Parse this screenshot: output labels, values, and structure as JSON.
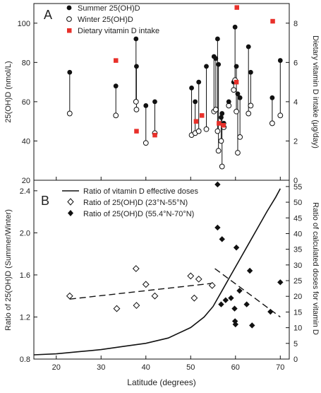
{
  "chart_data": [
    {
      "panel": "A",
      "type": "scatter",
      "ylabel": "25(OH)D (nmol/L)",
      "y2label": "Dietary vitamin D intake (μg/day)",
      "xlim": [
        15,
        72
      ],
      "ylim": [
        20,
        110
      ],
      "y2lim": [
        0,
        9
      ],
      "yticks": [
        20,
        40,
        60,
        80,
        100
      ],
      "y2ticks": [
        0,
        2,
        4,
        6,
        8
      ],
      "legend": [
        "Summer 25(OH)D",
        "Winter 25(OH)D",
        "Dietary vitamin D intake"
      ],
      "pairs": [
        {
          "lat": 23,
          "summer": 75,
          "winter": 54
        },
        {
          "lat": 33.3,
          "summer": 68,
          "winter": 53
        },
        {
          "lat": 37.8,
          "summer": 92,
          "winter": 60
        },
        {
          "lat": 37.9,
          "summer": 78,
          "winter": 56
        },
        {
          "lat": 40,
          "summer": 58,
          "winter": 39
        },
        {
          "lat": 42,
          "summer": 60,
          "winter": 44
        },
        {
          "lat": 50.2,
          "summer": 67,
          "winter": 43
        },
        {
          "lat": 51,
          "summer": 60,
          "winter": 44
        },
        {
          "lat": 51.8,
          "summer": 70,
          "winter": 45
        },
        {
          "lat": 53.5,
          "summer": 78,
          "winter": 46
        },
        {
          "lat": 55.2,
          "summer": 83,
          "winter": 55
        },
        {
          "lat": 55.6,
          "summer": 82,
          "winter": 56
        },
        {
          "lat": 56,
          "summer": 92,
          "winter": 45
        },
        {
          "lat": 56.2,
          "summer": 79,
          "winter": 35
        },
        {
          "lat": 56.8,
          "summer": 52,
          "winter": 40
        },
        {
          "lat": 57,
          "summer": 54,
          "winter": 27
        },
        {
          "lat": 57.4,
          "summer": 49,
          "winter": 47
        },
        {
          "lat": 58.5,
          "summer": 60,
          "winter": 58
        },
        {
          "lat": 59.6,
          "summer": 70,
          "winter": 66
        },
        {
          "lat": 59.9,
          "summer": 98,
          "winter": 71
        },
        {
          "lat": 60.2,
          "summer": 78,
          "winter": 55
        },
        {
          "lat": 60.5,
          "summer": 64,
          "winter": 34
        },
        {
          "lat": 61,
          "summer": 62,
          "winter": 42
        },
        {
          "lat": 62.9,
          "summer": 88,
          "winter": 54
        },
        {
          "lat": 63.4,
          "summer": 75,
          "winter": 58
        },
        {
          "lat": 68.2,
          "summer": 62,
          "winter": 49
        },
        {
          "lat": 70,
          "summer": 81,
          "winter": 53
        }
      ],
      "dietary_intake": [
        {
          "lat": 33.3,
          "value": 6.1
        },
        {
          "lat": 37.9,
          "value": 2.5
        },
        {
          "lat": 42,
          "value": 2.3
        },
        {
          "lat": 51.2,
          "value": 3.0
        },
        {
          "lat": 52.5,
          "value": 3.3
        },
        {
          "lat": 56.3,
          "value": 2.9
        },
        {
          "lat": 57.3,
          "value": 2.8
        },
        {
          "lat": 60.3,
          "value": 8.8
        },
        {
          "lat": 60.2,
          "value": 5.0
        },
        {
          "lat": 68.3,
          "value": 8.1
        }
      ]
    },
    {
      "panel": "B",
      "type": "scatter",
      "xlabel": "Latitude (degrees)",
      "ylabel": "Ratio of 25(OH)D (Summer/Winter)",
      "y2label": "Ratio of calculated doses for vitamin D",
      "xlim": [
        15,
        72
      ],
      "xticks": [
        20,
        30,
        40,
        50,
        60,
        70
      ],
      "ylim": [
        0.8,
        2.5
      ],
      "yticks": [
        0.8,
        1.2,
        1.6,
        2.0,
        2.4
      ],
      "y2lim": [
        0,
        57
      ],
      "y2ticks": [
        0,
        5,
        10,
        15,
        20,
        25,
        30,
        35,
        40,
        45,
        50,
        55
      ],
      "legend": [
        "Ratio of vitamin D effective doses",
        "Ratio of 25(OH)D (23°N-55°N)",
        "Ratio of 25(OH)D (55.4°N-70°N)"
      ],
      "low_lat_ratios": [
        {
          "lat": 23,
          "value": 1.4
        },
        {
          "lat": 33.5,
          "value": 1.28
        },
        {
          "lat": 37.8,
          "value": 1.66
        },
        {
          "lat": 37.9,
          "value": 1.31
        },
        {
          "lat": 40,
          "value": 1.51
        },
        {
          "lat": 42,
          "value": 1.4
        },
        {
          "lat": 50,
          "value": 1.59
        },
        {
          "lat": 50.8,
          "value": 1.38
        },
        {
          "lat": 51.8,
          "value": 1.56
        },
        {
          "lat": 54.8,
          "value": 1.5
        }
      ],
      "high_lat_ratios": [
        {
          "lat": 56,
          "value": 2.46
        },
        {
          "lat": 56,
          "value": 2.05
        },
        {
          "lat": 57,
          "value": 1.94
        },
        {
          "lat": 56.8,
          "value": 1.32
        },
        {
          "lat": 57.8,
          "value": 1.36
        },
        {
          "lat": 59,
          "value": 1.38
        },
        {
          "lat": 59.8,
          "value": 1.28
        },
        {
          "lat": 59.9,
          "value": 1.16
        },
        {
          "lat": 60,
          "value": 1.13
        },
        {
          "lat": 60.2,
          "value": 1.86
        },
        {
          "lat": 60.9,
          "value": 1.45
        },
        {
          "lat": 62.5,
          "value": 1.32
        },
        {
          "lat": 63.2,
          "value": 1.64
        },
        {
          "lat": 63.7,
          "value": 1.12
        },
        {
          "lat": 67.8,
          "value": 1.25
        },
        {
          "lat": 70,
          "value": 1.53
        }
      ],
      "fit_low": {
        "lat": [
          23,
          54.8
        ],
        "value": [
          1.37,
          1.52
        ]
      },
      "fit_high": {
        "lat": [
          55.4,
          70
        ],
        "value": [
          1.66,
          1.2
        ]
      },
      "effective_dose_curve": [
        {
          "lat": 15,
          "value": 0.84
        },
        {
          "lat": 20,
          "value": 0.85
        },
        {
          "lat": 25,
          "value": 0.87
        },
        {
          "lat": 30,
          "value": 0.89
        },
        {
          "lat": 35,
          "value": 0.92
        },
        {
          "lat": 40,
          "value": 0.95
        },
        {
          "lat": 45,
          "value": 1.0
        },
        {
          "lat": 50,
          "value": 1.1
        },
        {
          "lat": 53,
          "value": 1.2
        },
        {
          "lat": 55,
          "value": 1.3
        },
        {
          "lat": 57,
          "value": 1.45
        },
        {
          "lat": 59,
          "value": 1.6
        },
        {
          "lat": 61,
          "value": 1.75
        },
        {
          "lat": 63,
          "value": 1.9
        },
        {
          "lat": 65,
          "value": 2.05
        },
        {
          "lat": 67,
          "value": 2.2
        },
        {
          "lat": 69,
          "value": 2.34
        },
        {
          "lat": 70,
          "value": 2.42
        }
      ]
    }
  ],
  "panelA": {
    "letter": "A",
    "ylabel": "25(OH)D (nmol/L)",
    "y2label": "Dietary vitamin D intake (μg/day)",
    "legend_summer": "Summer 25(OH)D",
    "legend_winter": "Winter 25(OH)D",
    "legend_diet": "Dietary vitamin D intake"
  },
  "panelB": {
    "letter": "B",
    "xlabel": "Latitude (degrees)",
    "ylabel": "Ratio of 25(OH)D (Summer/Winter)",
    "y2label": "Ratio of calculated doses for vitamin D",
    "legend_curve": "Ratio of vitamin D effective doses",
    "legend_low": "Ratio of 25(OH)D (23°N-55°N)",
    "legend_high": "Ratio of 25(OH)D (55.4°N-70°N)"
  },
  "colors": {
    "diet": "#e8302a",
    "ink": "#111111"
  }
}
